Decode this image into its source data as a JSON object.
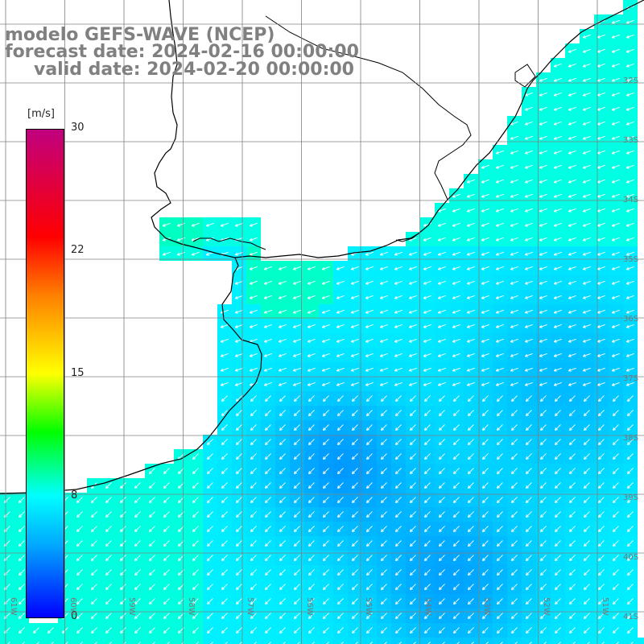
{
  "title": {
    "model": "modelo GEFS-WAVE (NCEP)",
    "forecast": "forecast date: 2024-02-16 00:00:00",
    "valid": "valid date: 2024-02-20 00:00:00"
  },
  "colorbar": {
    "unit": "[m/s]",
    "ticks": [
      "30",
      "22",
      "15",
      "8",
      "0"
    ],
    "tick_values": [
      30,
      22,
      15,
      8,
      0
    ],
    "range": [
      0,
      30
    ],
    "colors": [
      "#0000ff",
      "#0080ff",
      "#00ffff",
      "#00ff00",
      "#ffff00",
      "#ff8000",
      "#ff0000",
      "#c00080"
    ]
  },
  "map": {
    "lat_labels": [
      "32S",
      "33S",
      "34S",
      "35S",
      "36S",
      "37S",
      "38S",
      "39S",
      "40S",
      "41S"
    ],
    "lon_labels": [
      "61W",
      "60W",
      "59W",
      "58W",
      "57W",
      "56W",
      "55W",
      "54W",
      "53W",
      "52W",
      "51W"
    ],
    "lon_range": [
      -61,
      -51
    ],
    "lat_range": [
      -41,
      -32
    ],
    "land_color": "#ffffff",
    "coast_color": "#000000",
    "grid_color": "#808080",
    "field": "wind speed",
    "vectors": "wind direction arrows (white)"
  }
}
